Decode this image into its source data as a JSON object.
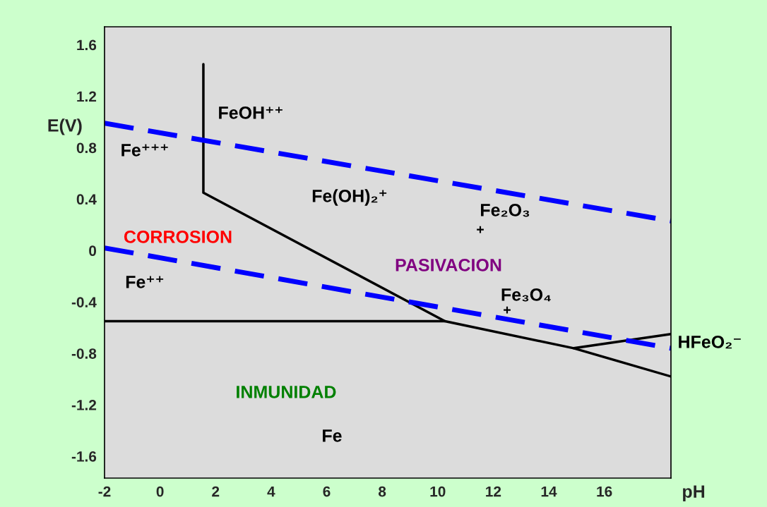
{
  "chart_data": {
    "type": "line",
    "xlabel": "pH",
    "ylabel": "E(V)",
    "xlim": [
      -2,
      18.4
    ],
    "xticks": [
      -2,
      0,
      2,
      4,
      6,
      8,
      10,
      12,
      14,
      16
    ],
    "ylim": [
      -1.77,
      1.74
    ],
    "yticks": [
      {
        "value": -1.6,
        "label": "-1.6"
      },
      {
        "value": -1.2,
        "label": "-1.2"
      },
      {
        "value": -0.8,
        "label": "-0.8"
      },
      {
        "value": -0.4,
        "label": "-0.4"
      },
      0,
      0.4,
      0.8,
      1.2,
      1.6
    ],
    "grid": false,
    "series": [
      {
        "color": "#000000",
        "line_style": "solid",
        "x": [
          1.56,
          1.56,
          10.26,
          14.9,
          18.4
        ],
        "values": [
          1.45,
          0.45,
          -0.55,
          -0.76,
          -0.98
        ]
      },
      {
        "color": "#000000",
        "line_style": "solid",
        "x": [
          -2,
          10.26
        ],
        "values": [
          -0.55,
          -0.55
        ]
      },
      {
        "color": "#000000",
        "line_style": "solid",
        "x": [
          14.9,
          18.4
        ],
        "values": [
          -0.76,
          -0.65
        ]
      },
      {
        "color": "#0000ff",
        "line_style": "dashed",
        "x": [
          -2,
          18.4
        ],
        "values": [
          0.99,
          0.23
        ]
      },
      {
        "color": "#0000ff",
        "line_style": "dashed",
        "x": [
          -2,
          18.4
        ],
        "values": [
          0.02,
          -0.76
        ]
      }
    ],
    "annotations": [
      "FeOH⁺⁺",
      "Fe⁺⁺⁺",
      "Fe(OH)₂⁺",
      "Fe₂O₃",
      "+",
      "CORROSION",
      "PASIVACION",
      "Fe⁺⁺",
      "Fe₃O₄",
      "+",
      "HFeO₂⁻",
      "INMUNIDAD",
      "Fe"
    ]
  }
}
